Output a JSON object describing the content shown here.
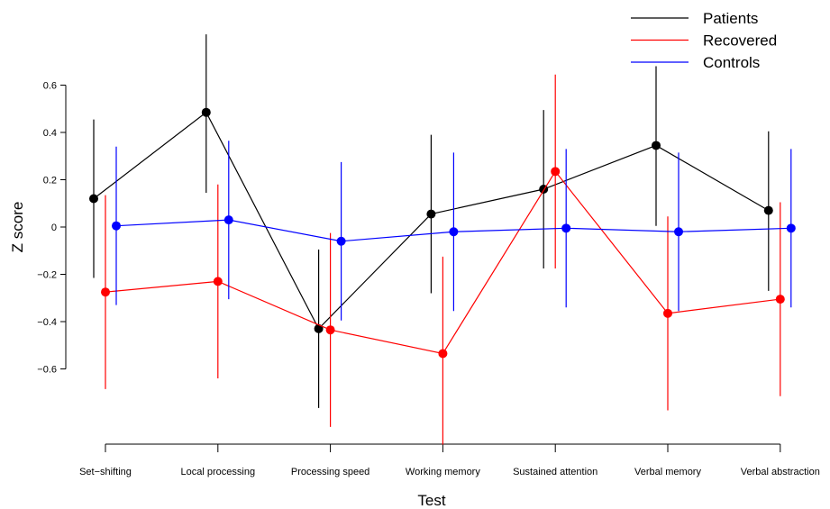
{
  "chart_data": {
    "type": "line",
    "title": "",
    "xlabel": "Test",
    "ylabel": "Z score",
    "categories": [
      "Set−shifting",
      "Local processing",
      "Processing speed",
      "Working memory",
      "Sustained attention",
      "Verbal memory",
      "Verbal abstraction"
    ],
    "yticks": [
      "0.6",
      "0.4",
      "0.2",
      "0",
      "−0.2",
      "−0.4",
      "−0.6"
    ],
    "ytick_values": [
      0.6,
      0.4,
      0.2,
      0,
      -0.2,
      -0.4,
      -0.6
    ],
    "ylim": [
      -0.92,
      0.82
    ],
    "error_bars": true,
    "legend_position": "top-right",
    "series": [
      {
        "name": "Patients",
        "color": "#000000",
        "values": [
          0.12,
          0.485,
          -0.43,
          0.055,
          0.16,
          0.345,
          0.07
        ],
        "lower": [
          -0.215,
          0.145,
          -0.765,
          -0.28,
          -0.175,
          0.005,
          -0.27
        ],
        "upper": [
          0.455,
          0.815,
          -0.095,
          0.39,
          0.495,
          0.68,
          0.405
        ]
      },
      {
        "name": "Recovered",
        "color": "#ff0000",
        "values": [
          -0.275,
          -0.23,
          -0.435,
          -0.535,
          0.235,
          -0.365,
          -0.305
        ],
        "lower": [
          -0.685,
          -0.64,
          -0.845,
          -0.92,
          -0.175,
          -0.775,
          -0.715
        ],
        "upper": [
          0.135,
          0.18,
          -0.025,
          -0.125,
          0.645,
          0.045,
          0.105
        ]
      },
      {
        "name": "Controls",
        "color": "#0000ff",
        "values": [
          0.005,
          0.03,
          -0.06,
          -0.02,
          -0.005,
          -0.02,
          -0.005
        ],
        "lower": [
          -0.33,
          -0.305,
          -0.395,
          -0.355,
          -0.34,
          -0.355,
          -0.34
        ],
        "upper": [
          0.34,
          0.365,
          0.275,
          0.315,
          0.33,
          0.315,
          0.33
        ]
      }
    ]
  }
}
